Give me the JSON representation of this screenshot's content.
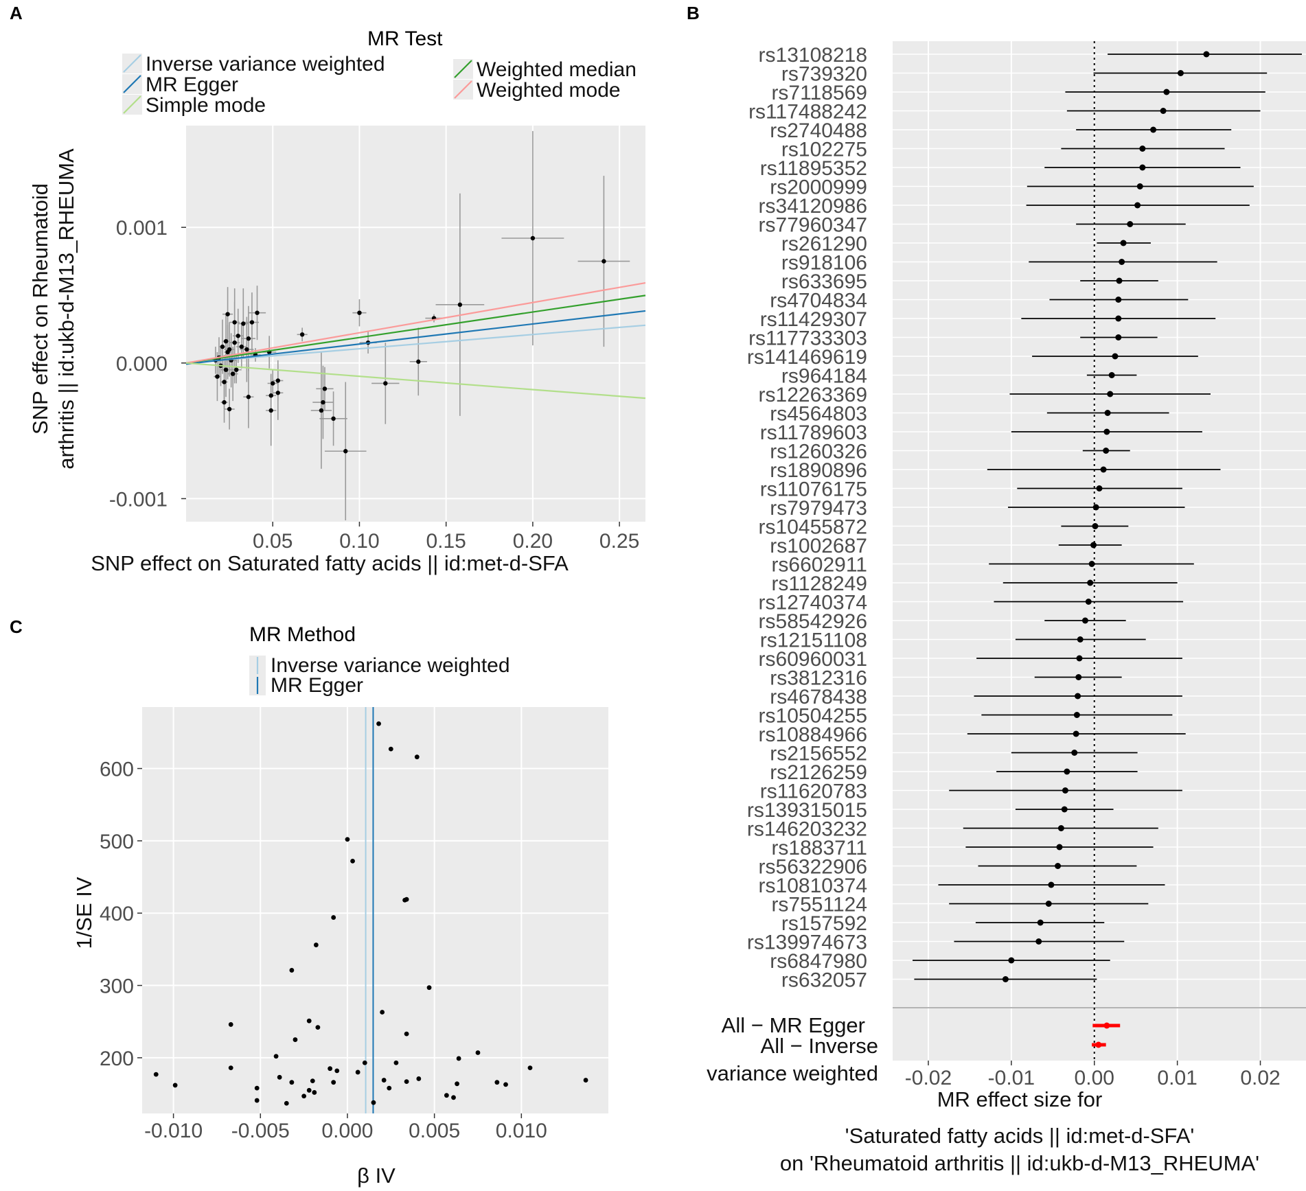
{
  "colors": {
    "ivw": "#a6cee3",
    "egger": "#1f78b4",
    "wmedian": "#33a02c",
    "wmode": "#fb9a99",
    "smode": "#b2df8a",
    "panel_bg": "#ebebeb",
    "grid": "#ffffff",
    "point": "#000000",
    "summary": "#ff0000",
    "errbar": "#999999"
  },
  "chart_data": [
    {
      "id": "A",
      "panel_label": "A",
      "type": "scatter",
      "xlabel": "SNP effect on Saturated fatty acids || id:met-d-SFA",
      "ylabel_lines": [
        "SNP effect on Rheumatoid",
        "arthritis || id:ukb-d-M13_RHEUMA"
      ],
      "xlim": [
        0.0,
        0.265
      ],
      "ylim": [
        -0.00117,
        0.00175
      ],
      "xticks": [
        {
          "v": 0.05,
          "label": "0.05"
        },
        {
          "v": 0.1,
          "label": "0.10"
        },
        {
          "v": 0.15,
          "label": "0.15"
        },
        {
          "v": 0.2,
          "label": "0.20"
        },
        {
          "v": 0.25,
          "label": "0.25"
        }
      ],
      "yticks": [
        {
          "v": 0.001,
          "label": "0.001"
        },
        {
          "v": 0.0,
          "label": "0.000"
        },
        {
          "v": -0.001,
          "label": "-0.001"
        }
      ],
      "legend_title": "MR Test",
      "legend": [
        {
          "name": "Inverse variance weighted",
          "color": "#a6cee3"
        },
        {
          "name": "MR Egger",
          "color": "#1f78b4"
        },
        {
          "name": "Simple mode",
          "color": "#b2df8a"
        },
        {
          "name": "Weighted median",
          "color": "#33a02c"
        },
        {
          "name": "Weighted mode",
          "color": "#fb9a99"
        }
      ],
      "lines": [
        {
          "method": "Inverse variance weighted",
          "slope": 0.00105,
          "intercept": 0.0,
          "color": "#a6cee3"
        },
        {
          "method": "MR Egger",
          "slope": 0.00148,
          "intercept": -8.3e-06,
          "color": "#1f78b4"
        },
        {
          "method": "Weighted median",
          "slope": 0.00188,
          "intercept": 0.0,
          "color": "#33a02c"
        },
        {
          "method": "Weighted mode",
          "slope": 0.00223,
          "intercept": 0.0,
          "color": "#fb9a99"
        },
        {
          "method": "Simple mode",
          "slope": -0.00098,
          "intercept": 0.0,
          "color": "#b2df8a"
        }
      ],
      "points": [
        {
          "x": 0.2,
          "y": 0.00092,
          "xerr": 0.018,
          "yerr": 0.00079
        },
        {
          "x": 0.241,
          "y": 0.00075,
          "xerr": 0.015,
          "yerr": 0.00063
        },
        {
          "x": 0.158,
          "y": 0.00043,
          "xerr": 0.014,
          "yerr": 0.00082
        },
        {
          "x": 0.143,
          "y": 0.00033,
          "xerr": 0.005,
          "yerr": 3e-05
        },
        {
          "x": 0.134,
          "y": 1e-05,
          "xerr": 0.005,
          "yerr": 0.00025
        },
        {
          "x": 0.115,
          "y": -0.00015,
          "xerr": 0.008,
          "yerr": 0.0003
        },
        {
          "x": 0.105,
          "y": 0.00015,
          "xerr": 0.005,
          "yerr": 8e-05
        },
        {
          "x": 0.1,
          "y": 0.00037,
          "xerr": 0.004,
          "yerr": 0.0001
        },
        {
          "x": 0.092,
          "y": -0.00065,
          "xerr": 0.012,
          "yerr": 0.00051
        },
        {
          "x": 0.085,
          "y": -0.00041,
          "xerr": 0.008,
          "yerr": 0.0002
        },
        {
          "x": 0.08,
          "y": -0.00019,
          "xerr": 0.005,
          "yerr": 0.00016
        },
        {
          "x": 0.079,
          "y": -0.00029,
          "xerr": 0.006,
          "yerr": 0.00027
        },
        {
          "x": 0.078,
          "y": -0.00035,
          "xerr": 0.006,
          "yerr": 0.00043
        },
        {
          "x": 0.067,
          "y": 0.00021,
          "xerr": 0.003,
          "yerr": 5e-05
        },
        {
          "x": 0.053,
          "y": -0.00013,
          "xerr": 0.003,
          "yerr": 0.00015
        },
        {
          "x": 0.053,
          "y": -0.00022,
          "xerr": 0.003,
          "yerr": 0.0002
        },
        {
          "x": 0.05,
          "y": -0.00015,
          "xerr": 0.003,
          "yerr": 0.0001
        },
        {
          "x": 0.049,
          "y": -0.00035,
          "xerr": 0.003,
          "yerr": 0.00026
        },
        {
          "x": 0.049,
          "y": -0.00024,
          "xerr": 0.003,
          "yerr": 0.00016
        },
        {
          "x": 0.048,
          "y": 8e-05,
          "xerr": 0.004,
          "yerr": 0.00012
        },
        {
          "x": 0.041,
          "y": 0.00037,
          "xerr": 0.005,
          "yerr": 0.0002
        },
        {
          "x": 0.04,
          "y": 6e-05,
          "xerr": 0.003,
          "yerr": 5e-05
        },
        {
          "x": 0.038,
          "y": 0.0003,
          "xerr": 0.004,
          "yerr": 0.00022
        },
        {
          "x": 0.036,
          "y": -0.00025,
          "xerr": 0.003,
          "yerr": 0.00023
        },
        {
          "x": 0.036,
          "y": 0.00018,
          "xerr": 0.004,
          "yerr": 0.00024
        },
        {
          "x": 0.035,
          "y": 0.0001,
          "xerr": 0.004,
          "yerr": 0.00024
        },
        {
          "x": 0.033,
          "y": 0.00029,
          "xerr": 0.003,
          "yerr": 0.00026
        },
        {
          "x": 0.032,
          "y": 0.00012,
          "xerr": 0.003,
          "yerr": 0.00016
        },
        {
          "x": 0.03,
          "y": 0.0002,
          "xerr": 0.003,
          "yerr": 0.0002
        },
        {
          "x": 0.029,
          "y": -5e-05,
          "xerr": 0.003,
          "yerr": 0.0001
        },
        {
          "x": 0.028,
          "y": 0.00015,
          "xerr": 0.003,
          "yerr": 0.0003
        },
        {
          "x": 0.028,
          "y": 0.0003,
          "xerr": 0.003,
          "yerr": 0.00025
        },
        {
          "x": 0.027,
          "y": -8e-05,
          "xerr": 0.003,
          "yerr": 0.0002
        },
        {
          "x": 0.026,
          "y": 2e-05,
          "xerr": 0.003,
          "yerr": 0.0002
        },
        {
          "x": 0.025,
          "y": 0.0001,
          "xerr": 0.003,
          "yerr": 0.0002
        },
        {
          "x": 0.025,
          "y": -0.00034,
          "xerr": 0.003,
          "yerr": 0.00015
        },
        {
          "x": 0.024,
          "y": 0.00036,
          "xerr": 0.003,
          "yerr": 0.0002
        },
        {
          "x": 0.024,
          "y": 8e-05,
          "xerr": 0.002,
          "yerr": 0.0002
        },
        {
          "x": 0.023,
          "y": -5e-05,
          "xerr": 0.003,
          "yerr": 0.0002
        },
        {
          "x": 0.023,
          "y": 0.00016,
          "xerr": 0.002,
          "yerr": 0.0002
        },
        {
          "x": 0.022,
          "y": -0.00029,
          "xerr": 0.002,
          "yerr": 0.00015
        },
        {
          "x": 0.022,
          "y": -0.00014,
          "xerr": 0.002,
          "yerr": 0.0002
        },
        {
          "x": 0.021,
          "y": 0.00012,
          "xerr": 0.002,
          "yerr": 0.0002
        },
        {
          "x": 0.02,
          "y": -2e-05,
          "xerr": 0.002,
          "yerr": 0.00015
        },
        {
          "x": 0.019,
          "y": 4e-05,
          "xerr": 0.002,
          "yerr": 0.00015
        },
        {
          "x": 0.018,
          "y": -0.0001,
          "xerr": 0.002,
          "yerr": 0.00018
        },
        {
          "x": 0.017,
          "y": 2e-05,
          "xerr": 0.002,
          "yerr": 0.0001
        }
      ]
    },
    {
      "id": "B",
      "panel_label": "B",
      "type": "forest",
      "xlim": [
        -0.0243,
        0.0255
      ],
      "xticks": [
        {
          "v": -0.02,
          "label": "-0.02"
        },
        {
          "v": -0.01,
          "label": "-0.01"
        },
        {
          "v": 0.0,
          "label": "0.00"
        },
        {
          "v": 0.01,
          "label": "0.01"
        },
        {
          "v": 0.02,
          "label": "0.02"
        }
      ],
      "xlabel_lines": [
        "MR effect size for",
        "",
        "'Saturated fatty acids || id:met-d-SFA'",
        "on 'Rheumatoid arthritis || id:ukb-d-M13_RHEUMA'"
      ],
      "snps": [
        {
          "label": "rs13108218",
          "b": 0.0135,
          "lo": 0.0016,
          "hi": 0.025
        },
        {
          "label": "rs739320",
          "b": 0.0104,
          "lo": -0.0001,
          "hi": 0.0208
        },
        {
          "label": "rs7118569",
          "b": 0.0087,
          "lo": -0.0035,
          "hi": 0.0206
        },
        {
          "label": "rs117488242",
          "b": 0.0083,
          "lo": -0.0033,
          "hi": 0.02
        },
        {
          "label": "rs2740488",
          "b": 0.0071,
          "lo": -0.0022,
          "hi": 0.0165
        },
        {
          "label": "rs102275",
          "b": 0.0058,
          "lo": -0.004,
          "hi": 0.0157
        },
        {
          "label": "rs11895352",
          "b": 0.0058,
          "lo": -0.006,
          "hi": 0.0176
        },
        {
          "label": "rs2000999",
          "b": 0.0055,
          "lo": -0.0081,
          "hi": 0.0192
        },
        {
          "label": "rs34120986",
          "b": 0.0052,
          "lo": -0.0082,
          "hi": 0.0187
        },
        {
          "label": "rs77960347",
          "b": 0.0043,
          "lo": -0.0022,
          "hi": 0.011
        },
        {
          "label": "rs261290",
          "b": 0.0035,
          "lo": 0.0003,
          "hi": 0.0068
        },
        {
          "label": "rs918106",
          "b": 0.0033,
          "lo": -0.0079,
          "hi": 0.0148
        },
        {
          "label": "rs633695",
          "b": 0.003,
          "lo": -0.0017,
          "hi": 0.0077
        },
        {
          "label": "rs4704834",
          "b": 0.0029,
          "lo": -0.0054,
          "hi": 0.0113
        },
        {
          "label": "rs11429307",
          "b": 0.0029,
          "lo": -0.0088,
          "hi": 0.0146
        },
        {
          "label": "rs117733303",
          "b": 0.0029,
          "lo": -0.0017,
          "hi": 0.0076
        },
        {
          "label": "rs141469619",
          "b": 0.0025,
          "lo": -0.0075,
          "hi": 0.0125
        },
        {
          "label": "rs964184",
          "b": 0.0021,
          "lo": -0.0009,
          "hi": 0.0051
        },
        {
          "label": "rs12263369",
          "b": 0.0019,
          "lo": -0.0102,
          "hi": 0.014
        },
        {
          "label": "rs4564803",
          "b": 0.0016,
          "lo": -0.0057,
          "hi": 0.009
        },
        {
          "label": "rs11789603",
          "b": 0.0015,
          "lo": -0.01,
          "hi": 0.013
        },
        {
          "label": "rs1260326",
          "b": 0.0014,
          "lo": -0.0014,
          "hi": 0.0043
        },
        {
          "label": "rs1890896",
          "b": 0.0011,
          "lo": -0.0129,
          "hi": 0.0152
        },
        {
          "label": "rs11076175",
          "b": 0.0006,
          "lo": -0.0093,
          "hi": 0.0106
        },
        {
          "label": "rs7979473",
          "b": 0.0002,
          "lo": -0.0104,
          "hi": 0.0109
        },
        {
          "label": "rs10455872",
          "b": 0.0001,
          "lo": -0.004,
          "hi": 0.0041
        },
        {
          "label": "rs1002687",
          "b": -0.0001,
          "lo": -0.0043,
          "hi": 0.0033
        },
        {
          "label": "rs6602911",
          "b": -0.0003,
          "lo": -0.0127,
          "hi": 0.012
        },
        {
          "label": "rs1128249",
          "b": -0.0005,
          "lo": -0.011,
          "hi": 0.01
        },
        {
          "label": "rs12740374",
          "b": -0.0007,
          "lo": -0.0121,
          "hi": 0.0107
        },
        {
          "label": "rs58542926",
          "b": -0.0011,
          "lo": -0.006,
          "hi": 0.0038
        },
        {
          "label": "rs12151108",
          "b": -0.0017,
          "lo": -0.0095,
          "hi": 0.0062
        },
        {
          "label": "rs60960031",
          "b": -0.0018,
          "lo": -0.0142,
          "hi": 0.0106
        },
        {
          "label": "rs3812316",
          "b": -0.0019,
          "lo": -0.0072,
          "hi": 0.0033
        },
        {
          "label": "rs4678438",
          "b": -0.002,
          "lo": -0.0145,
          "hi": 0.0106
        },
        {
          "label": "rs10504255",
          "b": -0.0021,
          "lo": -0.0136,
          "hi": 0.0094
        },
        {
          "label": "rs10884966",
          "b": -0.0022,
          "lo": -0.0153,
          "hi": 0.011
        },
        {
          "label": "rs2156552",
          "b": -0.0024,
          "lo": -0.01,
          "hi": 0.0052
        },
        {
          "label": "rs2126259",
          "b": -0.0033,
          "lo": -0.0118,
          "hi": 0.0052
        },
        {
          "label": "rs11620783",
          "b": -0.0035,
          "lo": -0.0175,
          "hi": 0.0106
        },
        {
          "label": "rs139315015",
          "b": -0.0036,
          "lo": -0.0095,
          "hi": 0.0023
        },
        {
          "label": "rs146203232",
          "b": -0.004,
          "lo": -0.0158,
          "hi": 0.0077
        },
        {
          "label": "rs1883711",
          "b": -0.0042,
          "lo": -0.0155,
          "hi": 0.0071
        },
        {
          "label": "rs56322906",
          "b": -0.0044,
          "lo": -0.014,
          "hi": 0.0051
        },
        {
          "label": "rs10810374",
          "b": -0.0052,
          "lo": -0.0188,
          "hi": 0.0085
        },
        {
          "label": "rs7551124",
          "b": -0.0055,
          "lo": -0.0175,
          "hi": 0.0065
        },
        {
          "label": "rs157592",
          "b": -0.0065,
          "lo": -0.0143,
          "hi": 0.0012
        },
        {
          "label": "rs139974673",
          "b": -0.0067,
          "lo": -0.0169,
          "hi": 0.0036
        },
        {
          "label": "rs6847980",
          "b": -0.01,
          "lo": -0.0219,
          "hi": 0.0019
        },
        {
          "label": "rs632057",
          "b": -0.0107,
          "lo": -0.0217,
          "hi": 0.0003
        }
      ],
      "summaries": [
        {
          "label_lines": [
            "All − MR Egger"
          ],
          "b": 0.0015,
          "lo": -0.0002,
          "hi": 0.0031
        },
        {
          "label_lines": [
            "All − Inverse",
            "variance weighted"
          ],
          "b": 0.0005,
          "lo": -0.0003,
          "hi": 0.0014
        }
      ]
    },
    {
      "id": "C",
      "panel_label": "C",
      "type": "scatter",
      "xlabel": "β IV",
      "ylabel": "1/SE IV",
      "xlim": [
        -0.0118,
        0.015
      ],
      "ylim": [
        123,
        685
      ],
      "xticks": [
        {
          "v": -0.01,
          "label": "-0.010"
        },
        {
          "v": -0.005,
          "label": "-0.005"
        },
        {
          "v": 0.0,
          "label": "0.000"
        },
        {
          "v": 0.005,
          "label": "0.005"
        },
        {
          "v": 0.01,
          "label": "0.010"
        }
      ],
      "yticks": [
        {
          "v": 200,
          "label": "200"
        },
        {
          "v": 300,
          "label": "300"
        },
        {
          "v": 400,
          "label": "400"
        },
        {
          "v": 500,
          "label": "500"
        },
        {
          "v": 600,
          "label": "600"
        }
      ],
      "legend_title": "MR Method",
      "legend": [
        {
          "name": "Inverse variance weighted",
          "color": "#a6cee3"
        },
        {
          "name": "MR Egger",
          "color": "#1f78b4"
        }
      ],
      "vlines": [
        {
          "method": "Inverse variance weighted",
          "x": 0.00105,
          "color": "#a6cee3"
        },
        {
          "method": "MR Egger",
          "x": 0.00148,
          "color": "#1f78b4"
        }
      ],
      "points": [
        [
          0.0018,
          662
        ],
        [
          0.0025,
          627
        ],
        [
          0.004,
          616
        ],
        [
          0.0,
          502
        ],
        [
          0.0003,
          472
        ],
        [
          0.0034,
          419
        ],
        [
          0.0033,
          418
        ],
        [
          -0.0008,
          394
        ],
        [
          -0.0018,
          356
        ],
        [
          -0.0032,
          321
        ],
        [
          0.0047,
          297
        ],
        [
          -0.0067,
          246
        ],
        [
          -0.0022,
          251
        ],
        [
          -0.0017,
          242
        ],
        [
          0.002,
          263
        ],
        [
          0.0034,
          233
        ],
        [
          -0.003,
          225
        ],
        [
          -0.0041,
          202
        ],
        [
          0.0075,
          207
        ],
        [
          0.0064,
          199
        ],
        [
          0.0028,
          193
        ],
        [
          0.001,
          193
        ],
        [
          -0.011,
          177
        ],
        [
          -0.0067,
          186
        ],
        [
          -0.0099,
          162
        ],
        [
          -0.0039,
          173
        ],
        [
          -0.0032,
          166
        ],
        [
          -0.002,
          168
        ],
        [
          -0.001,
          185
        ],
        [
          -0.0006,
          182
        ],
        [
          0.0006,
          180
        ],
        [
          0.0105,
          186
        ],
        [
          0.0137,
          169
        ],
        [
          0.0086,
          166
        ],
        [
          0.0091,
          163
        ],
        [
          0.0063,
          164
        ],
        [
          0.0041,
          171
        ],
        [
          0.0034,
          167
        ],
        [
          0.0021,
          169
        ],
        [
          -0.0022,
          155
        ],
        [
          -0.0019,
          152
        ],
        [
          -0.0052,
          158
        ],
        [
          -0.0052,
          141
        ],
        [
          -0.0025,
          147
        ],
        [
          -0.0035,
          137
        ],
        [
          0.0015,
          138
        ],
        [
          0.0024,
          158
        ],
        [
          0.0057,
          148
        ],
        [
          0.0061,
          145
        ],
        [
          -0.0008,
          166
        ]
      ]
    }
  ]
}
